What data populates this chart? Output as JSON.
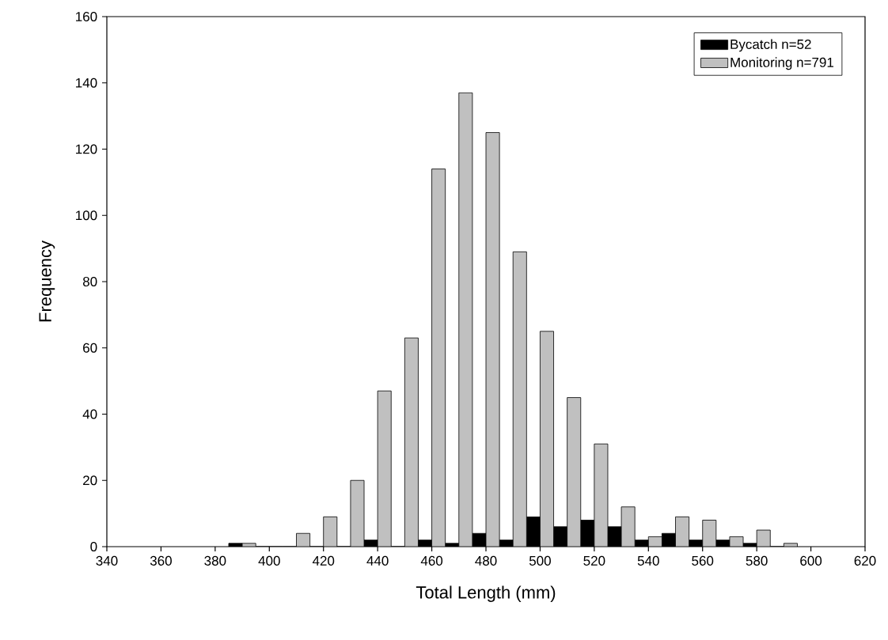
{
  "chart_data": {
    "type": "bar",
    "xlabel": "Total Length (mm)",
    "ylabel": "Frequency",
    "x": [
      390,
      400,
      410,
      420,
      430,
      440,
      450,
      460,
      470,
      480,
      490,
      500,
      510,
      520,
      530,
      540,
      550,
      560,
      570,
      580,
      590
    ],
    "series": [
      {
        "name": "Bycatch  n=52",
        "color": "#000000",
        "values": [
          1,
          0,
          0,
          0,
          0,
          2,
          0,
          2,
          1,
          4,
          2,
          9,
          6,
          8,
          6,
          2,
          4,
          2,
          2,
          1,
          0
        ]
      },
      {
        "name": "Monitoring n=791",
        "color": "#c0c0c0",
        "values": [
          1,
          0,
          4,
          9,
          20,
          47,
          63,
          114,
          137,
          125,
          89,
          65,
          45,
          31,
          12,
          3,
          9,
          8,
          3,
          5,
          1
        ]
      }
    ],
    "xlim": [
      340,
      620
    ],
    "ylim": [
      0,
      160
    ],
    "xticks": [
      340,
      360,
      380,
      400,
      420,
      440,
      460,
      480,
      500,
      520,
      540,
      560,
      580,
      600,
      620
    ],
    "yticks": [
      0,
      20,
      40,
      60,
      80,
      100,
      120,
      140,
      160
    ],
    "grid": false,
    "legend": "top right"
  }
}
